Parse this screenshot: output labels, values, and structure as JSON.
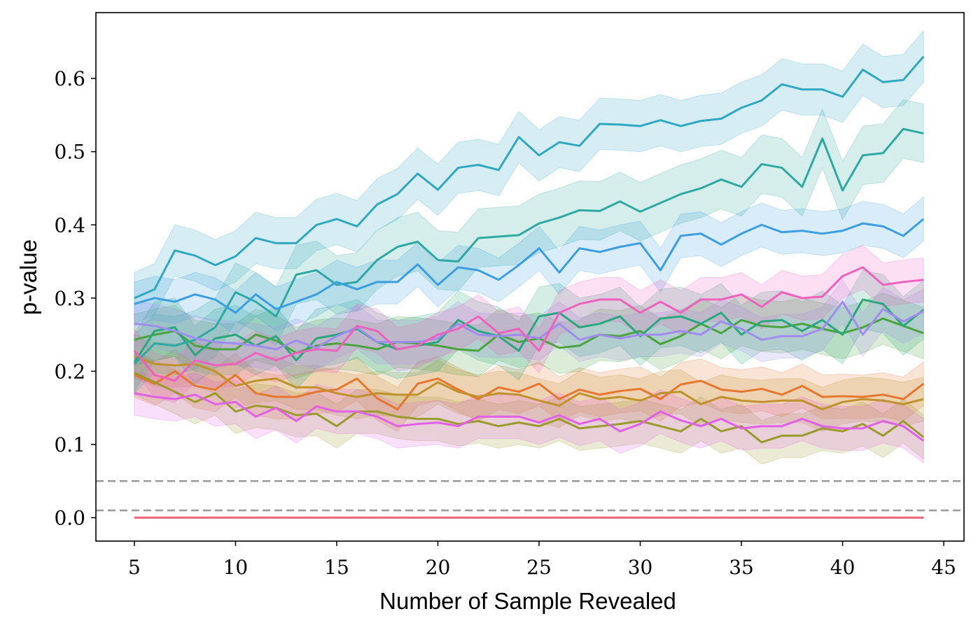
{
  "chart_data": {
    "type": "line",
    "title": "",
    "xlabel": "Number of Sample Revealed",
    "ylabel": "p-value",
    "xlim": [
      3.1,
      46
    ],
    "ylim": [
      -0.032,
      0.69
    ],
    "xticks": [
      5,
      10,
      15,
      20,
      25,
      30,
      35,
      40,
      45
    ],
    "xtick_labels": [
      "5",
      "10",
      "15",
      "20",
      "25",
      "30",
      "35",
      "40",
      "45"
    ],
    "yticks": [
      0.0,
      0.1,
      0.2,
      0.3,
      0.4,
      0.5,
      0.6
    ],
    "ytick_labels": [
      "0.0",
      "0.1",
      "0.2",
      "0.3",
      "0.4",
      "0.5",
      "0.6"
    ],
    "grid": false,
    "legend": "none",
    "reference_lines": [
      {
        "y": 0.05,
        "style": "dashed",
        "color": "#999999"
      },
      {
        "y": 0.01,
        "style": "dashed",
        "color": "#999999"
      }
    ],
    "x": [
      5,
      6,
      7,
      8,
      9,
      10,
      11,
      12,
      13,
      14,
      15,
      16,
      17,
      18,
      19,
      20,
      21,
      22,
      23,
      24,
      25,
      26,
      27,
      28,
      29,
      30,
      31,
      32,
      33,
      34,
      35,
      36,
      37,
      38,
      39,
      40,
      41,
      42,
      43,
      44
    ],
    "series": [
      {
        "color": "#f0677a",
        "band": 0.0,
        "values": [
          0,
          0,
          0,
          0,
          0,
          0,
          0,
          0,
          0,
          0,
          0,
          0,
          0,
          0,
          0,
          0,
          0,
          0,
          0,
          0,
          0,
          0,
          0,
          0,
          0,
          0,
          0,
          0,
          0,
          0,
          0,
          0,
          0,
          0,
          0,
          0,
          0,
          0,
          0,
          0
        ]
      },
      {
        "color": "#e7772e",
        "band": 0.03,
        "values": [
          0.195,
          0.183,
          0.2,
          0.18,
          0.175,
          0.195,
          0.17,
          0.165,
          0.165,
          0.172,
          0.175,
          0.19,
          0.163,
          0.148,
          0.183,
          0.19,
          0.175,
          0.162,
          0.178,
          0.172,
          0.183,
          0.162,
          0.175,
          0.168,
          0.173,
          0.176,
          0.162,
          0.182,
          0.187,
          0.175,
          0.172,
          0.176,
          0.168,
          0.18,
          0.165,
          0.166,
          0.165,
          0.168,
          0.162,
          0.183
        ]
      },
      {
        "color": "#c0922b",
        "band": 0.03,
        "values": [
          0.22,
          0.21,
          0.208,
          0.21,
          0.2,
          0.18,
          0.187,
          0.19,
          0.178,
          0.178,
          0.17,
          0.165,
          0.17,
          0.168,
          0.168,
          0.185,
          0.172,
          0.165,
          0.17,
          0.168,
          0.16,
          0.153,
          0.17,
          0.162,
          0.165,
          0.16,
          0.17,
          0.172,
          0.155,
          0.165,
          0.16,
          0.158,
          0.16,
          0.16,
          0.148,
          0.158,
          0.162,
          0.16,
          0.155,
          0.162
        ]
      },
      {
        "color": "#9b9a2d",
        "band": 0.03,
        "values": [
          0.198,
          0.185,
          0.172,
          0.158,
          0.17,
          0.145,
          0.153,
          0.15,
          0.14,
          0.142,
          0.125,
          0.145,
          0.145,
          0.138,
          0.135,
          0.135,
          0.128,
          0.132,
          0.125,
          0.13,
          0.125,
          0.135,
          0.122,
          0.125,
          0.128,
          0.132,
          0.125,
          0.118,
          0.135,
          0.118,
          0.125,
          0.103,
          0.112,
          0.112,
          0.122,
          0.118,
          0.128,
          0.112,
          0.132,
          0.11
        ]
      },
      {
        "color": "#4aa43c",
        "band": 0.035,
        "values": [
          0.243,
          0.25,
          0.255,
          0.235,
          0.23,
          0.23,
          0.25,
          0.242,
          0.225,
          0.235,
          0.238,
          0.235,
          0.23,
          0.24,
          0.238,
          0.235,
          0.23,
          0.228,
          0.25,
          0.24,
          0.245,
          0.232,
          0.235,
          0.25,
          0.248,
          0.255,
          0.237,
          0.248,
          0.265,
          0.252,
          0.27,
          0.262,
          0.26,
          0.265,
          0.258,
          0.252,
          0.26,
          0.272,
          0.262,
          0.252
        ]
      },
      {
        "color": "#2aa77f",
        "band": 0.04,
        "values": [
          0.212,
          0.255,
          0.26,
          0.222,
          0.245,
          0.25,
          0.235,
          0.248,
          0.215,
          0.245,
          0.25,
          0.258,
          0.24,
          0.23,
          0.235,
          0.24,
          0.27,
          0.255,
          0.248,
          0.228,
          0.275,
          0.28,
          0.26,
          0.265,
          0.275,
          0.248,
          0.272,
          0.275,
          0.265,
          0.28,
          0.25,
          0.268,
          0.27,
          0.255,
          0.27,
          0.25,
          0.298,
          0.292,
          0.262,
          0.284
        ]
      },
      {
        "color": "#2ea9a2",
        "band": 0.04,
        "values": [
          0.21,
          0.238,
          0.235,
          0.243,
          0.26,
          0.308,
          0.295,
          0.275,
          0.332,
          0.338,
          0.318,
          0.322,
          0.352,
          0.37,
          0.377,
          0.352,
          0.35,
          0.382,
          0.384,
          0.386,
          0.402,
          0.41,
          0.42,
          0.419,
          0.432,
          0.418,
          0.43,
          0.442,
          0.45,
          0.462,
          0.452,
          0.483,
          0.478,
          0.452,
          0.518,
          0.447,
          0.495,
          0.498,
          0.531,
          0.525
        ]
      },
      {
        "color": "#31a8c2",
        "band": 0.035,
        "values": [
          0.3,
          0.312,
          0.365,
          0.358,
          0.345,
          0.357,
          0.382,
          0.375,
          0.375,
          0.4,
          0.408,
          0.398,
          0.428,
          0.442,
          0.47,
          0.448,
          0.478,
          0.482,
          0.475,
          0.52,
          0.495,
          0.513,
          0.508,
          0.538,
          0.537,
          0.535,
          0.543,
          0.535,
          0.542,
          0.545,
          0.56,
          0.57,
          0.592,
          0.585,
          0.585,
          0.575,
          0.612,
          0.595,
          0.598,
          0.63
        ]
      },
      {
        "color": "#3b9ee2",
        "band": 0.03,
        "values": [
          0.292,
          0.3,
          0.295,
          0.305,
          0.298,
          0.28,
          0.305,
          0.285,
          0.295,
          0.305,
          0.322,
          0.312,
          0.322,
          0.322,
          0.346,
          0.318,
          0.342,
          0.338,
          0.325,
          0.345,
          0.368,
          0.335,
          0.368,
          0.363,
          0.37,
          0.375,
          0.338,
          0.385,
          0.388,
          0.373,
          0.388,
          0.4,
          0.39,
          0.392,
          0.388,
          0.392,
          0.402,
          0.398,
          0.385,
          0.408
        ]
      },
      {
        "color": "#a08cf0",
        "band": 0.03,
        "values": [
          0.265,
          0.262,
          0.255,
          0.245,
          0.24,
          0.238,
          0.235,
          0.23,
          0.242,
          0.232,
          0.248,
          0.26,
          0.24,
          0.24,
          0.24,
          0.245,
          0.265,
          0.25,
          0.248,
          0.25,
          0.245,
          0.265,
          0.243,
          0.25,
          0.245,
          0.25,
          0.25,
          0.255,
          0.25,
          0.268,
          0.258,
          0.243,
          0.248,
          0.248,
          0.258,
          0.295,
          0.25,
          0.285,
          0.268,
          0.282
        ]
      },
      {
        "color": "#f060bd",
        "band": 0.03,
        "values": [
          0.228,
          0.195,
          0.187,
          0.215,
          0.208,
          0.21,
          0.225,
          0.215,
          0.225,
          0.23,
          0.228,
          0.262,
          0.255,
          0.23,
          0.235,
          0.25,
          0.258,
          0.275,
          0.252,
          0.258,
          0.228,
          0.28,
          0.292,
          0.298,
          0.298,
          0.28,
          0.295,
          0.28,
          0.298,
          0.298,
          0.305,
          0.288,
          0.308,
          0.3,
          0.302,
          0.33,
          0.342,
          0.318,
          0.322,
          0.325
        ]
      },
      {
        "color": "#e060e8",
        "band": 0.03,
        "values": [
          0.17,
          0.165,
          0.162,
          0.168,
          0.155,
          0.158,
          0.138,
          0.15,
          0.132,
          0.152,
          0.145,
          0.145,
          0.138,
          0.125,
          0.128,
          0.13,
          0.125,
          0.138,
          0.138,
          0.138,
          0.13,
          0.14,
          0.128,
          0.135,
          0.118,
          0.128,
          0.145,
          0.133,
          0.125,
          0.135,
          0.122,
          0.125,
          0.125,
          0.135,
          0.125,
          0.122,
          0.122,
          0.132,
          0.125,
          0.105
        ]
      }
    ]
  }
}
